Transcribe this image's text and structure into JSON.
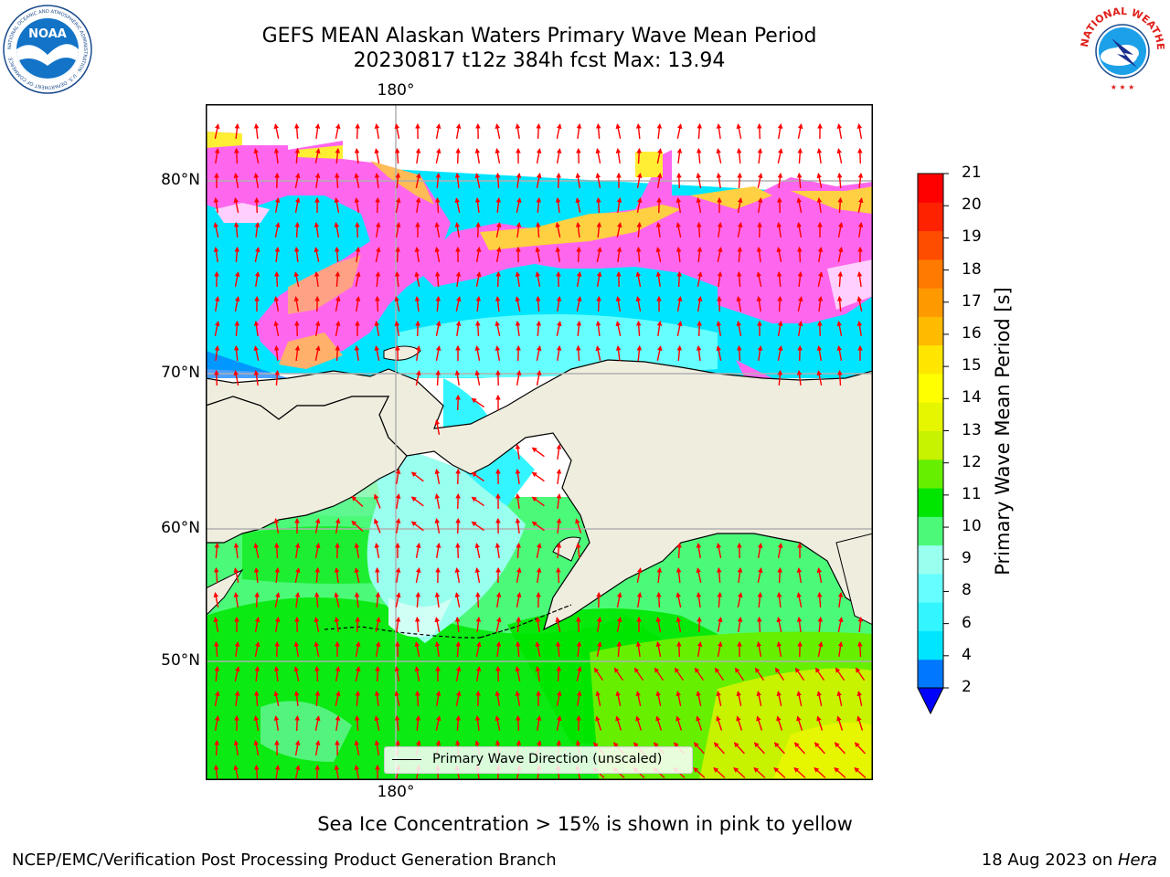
{
  "header": {
    "title_line1": "GEFS MEAN Alaskan Waters Primary Wave Mean Period",
    "title_line2": "20230817 t12z 384h fcst   Max: 13.94"
  },
  "logos": {
    "noaa": {
      "text": "NOAA",
      "ring_text": "NATIONAL OCEANIC AND ATMOSPHERIC ADMINISTRATION · U.S. DEPARTMENT OF COMMERCE"
    },
    "nws": {
      "ring_text": "NATIONAL WEATHER SERVICE"
    }
  },
  "map": {
    "latitude_labels": [
      "80°N",
      "70°N",
      "60°N",
      "50°N"
    ],
    "longitude_label_top": "180°",
    "longitude_label_bottom": "180°",
    "legend_label": "Primary Wave Direction (unscaled)",
    "colors": {
      "land": "#efedde",
      "gridline": "#b0b0b0",
      "arrow": "#ff0000",
      "coast": "#000000"
    }
  },
  "colorbar": {
    "title": "Primary Wave Mean Period [s]",
    "ticks": [
      "21",
      "20",
      "19",
      "18",
      "17",
      "16",
      "15",
      "14",
      "13",
      "12",
      "11",
      "10",
      "9",
      "8",
      "6",
      "4",
      "2"
    ],
    "bin_colors_bottom_to_top": [
      "#0077ff",
      "#00e5ff",
      "#33f5ff",
      "#66ffff",
      "#99ffee",
      "#4cfa7a",
      "#00e600",
      "#66f000",
      "#c7f200",
      "#e6f500",
      "#ffff00",
      "#ffe600",
      "#ffbb00",
      "#ff9900",
      "#ff7a00",
      "#ff4d00",
      "#ff2200",
      "#ff0000"
    ],
    "extend_below_color": "#0000ff"
  },
  "note": "Sea Ice Concentration > 15% is shown in pink to yellow",
  "footer": {
    "left": "NCEP/EMC/Verification Post Processing Product Generation Branch",
    "right_date": "18 Aug 2023 on ",
    "right_machine": "Hera"
  }
}
